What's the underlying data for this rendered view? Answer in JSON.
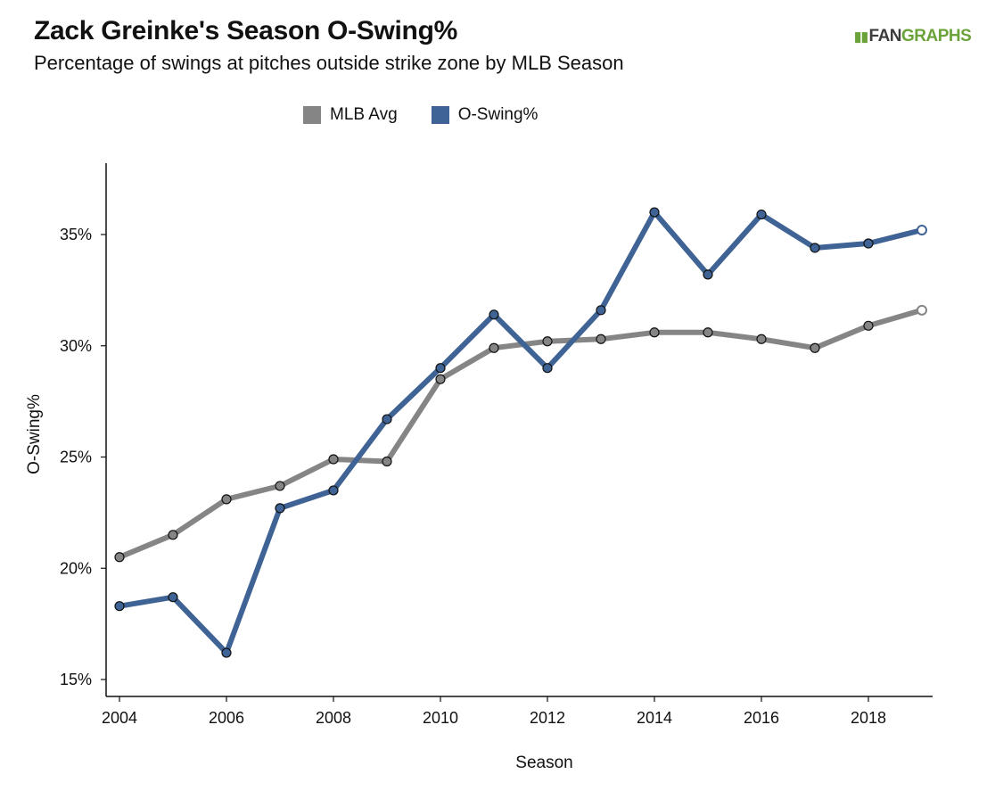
{
  "header": {
    "title": "Zack Greinke's Season O-Swing%",
    "subtitle": "Percentage of swings at pitches outside strike zone by MLB Season",
    "logo_text_fan": "FAN",
    "logo_text_graphs": "GRAPHS"
  },
  "chart_data": {
    "type": "line",
    "title": "Zack Greinke's Season O-Swing%",
    "subtitle": "Percentage of swings at pitches outside strike zone by MLB Season",
    "xlabel": "Season",
    "ylabel": "O-Swing%",
    "x": [
      2004,
      2005,
      2006,
      2007,
      2008,
      2009,
      2010,
      2011,
      2012,
      2013,
      2014,
      2015,
      2016,
      2017,
      2018,
      2019
    ],
    "xlim": [
      2004,
      2019
    ],
    "ylim": [
      15,
      38
    ],
    "x_ticks": [
      2004,
      2006,
      2008,
      2010,
      2012,
      2014,
      2016,
      2018
    ],
    "y_ticks": [
      15,
      20,
      25,
      30,
      35
    ],
    "y_tick_labels": [
      "15%",
      "20%",
      "25%",
      "30%",
      "35%"
    ],
    "legend_position": "top-center",
    "grid": false,
    "series": [
      {
        "name": "MLB Avg",
        "color": "#858585",
        "values": [
          20.5,
          21.5,
          23.1,
          23.7,
          24.9,
          24.8,
          28.5,
          29.9,
          30.2,
          30.3,
          30.6,
          30.6,
          30.3,
          29.9,
          30.9,
          31.6
        ],
        "last_point_hollow": true
      },
      {
        "name": "O-Swing%",
        "color": "#3f6394",
        "values": [
          18.3,
          18.7,
          16.2,
          22.7,
          23.5,
          26.7,
          29.0,
          31.4,
          29.0,
          31.6,
          36.0,
          33.2,
          35.9,
          34.4,
          34.6,
          35.2
        ],
        "last_point_hollow": true
      }
    ]
  }
}
